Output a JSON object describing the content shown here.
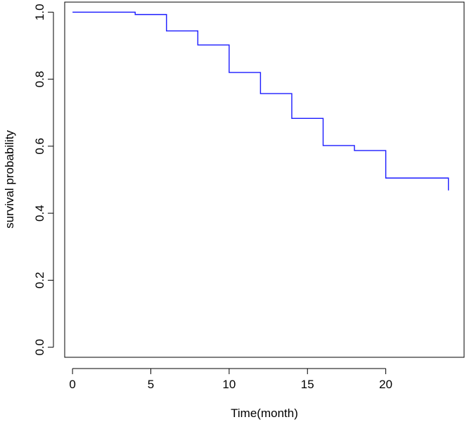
{
  "chart_data": {
    "type": "line",
    "style": "step",
    "title": "",
    "xlabel": "Time(month)",
    "ylabel": "survival probability",
    "xlim": [
      -0.5,
      25
    ],
    "ylim": [
      -0.03,
      1.03
    ],
    "x_ticks": [
      "0",
      "5",
      "10",
      "15",
      "20"
    ],
    "y_ticks": [
      "0.0",
      "0.2",
      "0.4",
      "0.6",
      "0.8",
      "1.0"
    ],
    "grid": false,
    "series": [
      {
        "color": "#1a1aff",
        "x": [
          0,
          4,
          6,
          8,
          10,
          12,
          14,
          16,
          18,
          20,
          24
        ],
        "y": [
          1.0,
          0.993,
          0.944,
          0.902,
          0.82,
          0.757,
          0.683,
          0.602,
          0.587,
          0.505,
          0.468
        ]
      }
    ]
  }
}
